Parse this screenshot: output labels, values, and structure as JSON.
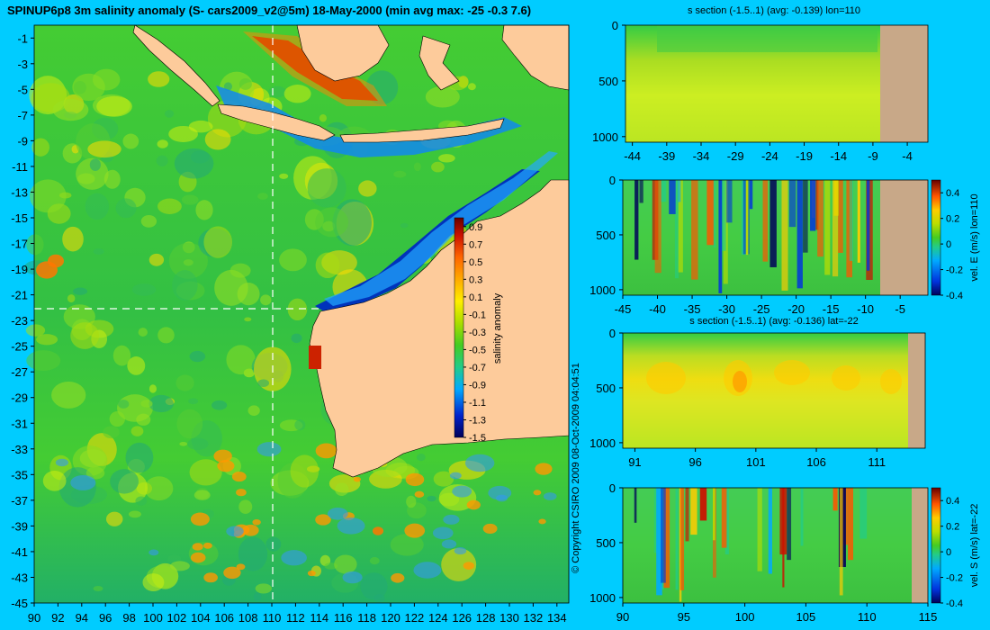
{
  "main_title": "SPINUP6p8 3m salinity anomaly (S- cars2009_v2@5m) 18-May-2000 (min avg max: -25 -0.3 7.6)",
  "copyright": "© Copyright CSIRO 2009  08-Oct-2009 04:04:51",
  "colors": {
    "background": "#00ccff",
    "land": "#fdcb9b",
    "land_section": "#c8a888",
    "guide_line": "#ffffff"
  },
  "chart_data": [
    {
      "type": "heatmap",
      "id": "map",
      "title": "SPINUP6p8 3m salinity anomaly (S- cars2009_v2@5m) 18-May-2000 (min avg max: -25 -0.3 7.6)",
      "xlim": [
        90,
        135
      ],
      "ylim": [
        -45,
        0
      ],
      "xticks": [
        "90",
        "92",
        "94",
        "96",
        "98",
        "100",
        "102",
        "104",
        "106",
        "108",
        "110",
        "112",
        "114",
        "116",
        "118",
        "120",
        "122",
        "124",
        "126",
        "128",
        "130",
        "132",
        "134"
      ],
      "yticks": [
        "-1",
        "-3",
        "-5",
        "-7",
        "-9",
        "-11",
        "-13",
        "-15",
        "-17",
        "-19",
        "-21",
        "-23",
        "-25",
        "-27",
        "-29",
        "-31",
        "-33",
        "-35",
        "-37",
        "-39",
        "-41",
        "-43",
        "-45"
      ],
      "section_lon": 110,
      "section_lat": -22,
      "colorbar": {
        "label": "salinity anomaly",
        "range": [
          -1.5,
          1.0
        ],
        "ticks": [
          "0.9",
          "0.7",
          "0.5",
          "0.3",
          "0.1",
          "-0.1",
          "-0.3",
          "-0.5",
          "-0.7",
          "-0.9",
          "-1.1",
          "-1.3",
          "-1.5"
        ]
      }
    },
    {
      "type": "heatmap",
      "id": "panel1",
      "title": "s section (-1.5..1) (avg: -0.139) lon=110",
      "xlim": [
        -45,
        -1
      ],
      "ylim": [
        1050,
        0
      ],
      "xticks": [
        "-44",
        "-39",
        "-34",
        "-29",
        "-24",
        "-19",
        "-14",
        "-9",
        "-4"
      ],
      "yticks": [
        "0",
        "500",
        "1000"
      ],
      "land_from": -8
    },
    {
      "type": "heatmap",
      "id": "panel2",
      "title": "",
      "xlim": [
        -45,
        -1
      ],
      "ylim": [
        1050,
        0
      ],
      "xticks": [
        "-45",
        "-40",
        "-35",
        "-30",
        "-25",
        "-20",
        "-15",
        "-10",
        "-5"
      ],
      "yticks": [
        "0",
        "500",
        "1000"
      ],
      "land_from": -8,
      "colorbar": {
        "label": "vel. E (m/s) lon=110",
        "range": [
          -0.4,
          0.5
        ],
        "ticks": [
          "0.4",
          "0.2",
          "0",
          "-0.2",
          "-0.4"
        ]
      }
    },
    {
      "type": "heatmap",
      "id": "panel3",
      "title": "s section (-1.5..1) (avg: -0.136) lat=-22",
      "xlim": [
        90,
        115
      ],
      "ylim": [
        1050,
        0
      ],
      "xticks": [
        "91",
        "96",
        "101",
        "106",
        "111"
      ],
      "yticks": [
        "0",
        "500",
        "1000"
      ],
      "land_from": 113.8
    },
    {
      "type": "heatmap",
      "id": "panel4",
      "title": "",
      "xlim": [
        90,
        115
      ],
      "ylim": [
        1050,
        0
      ],
      "xticks": [
        "90",
        "95",
        "100",
        "105",
        "110",
        "115"
      ],
      "yticks": [
        "0",
        "500",
        "1000"
      ],
      "land_from": 113.8,
      "colorbar": {
        "label": "vel. S (m/s) lat=-22",
        "range": [
          -0.4,
          0.5
        ],
        "ticks": [
          "0.4",
          "0.2",
          "0",
          "-0.2",
          "-0.4"
        ]
      }
    }
  ]
}
